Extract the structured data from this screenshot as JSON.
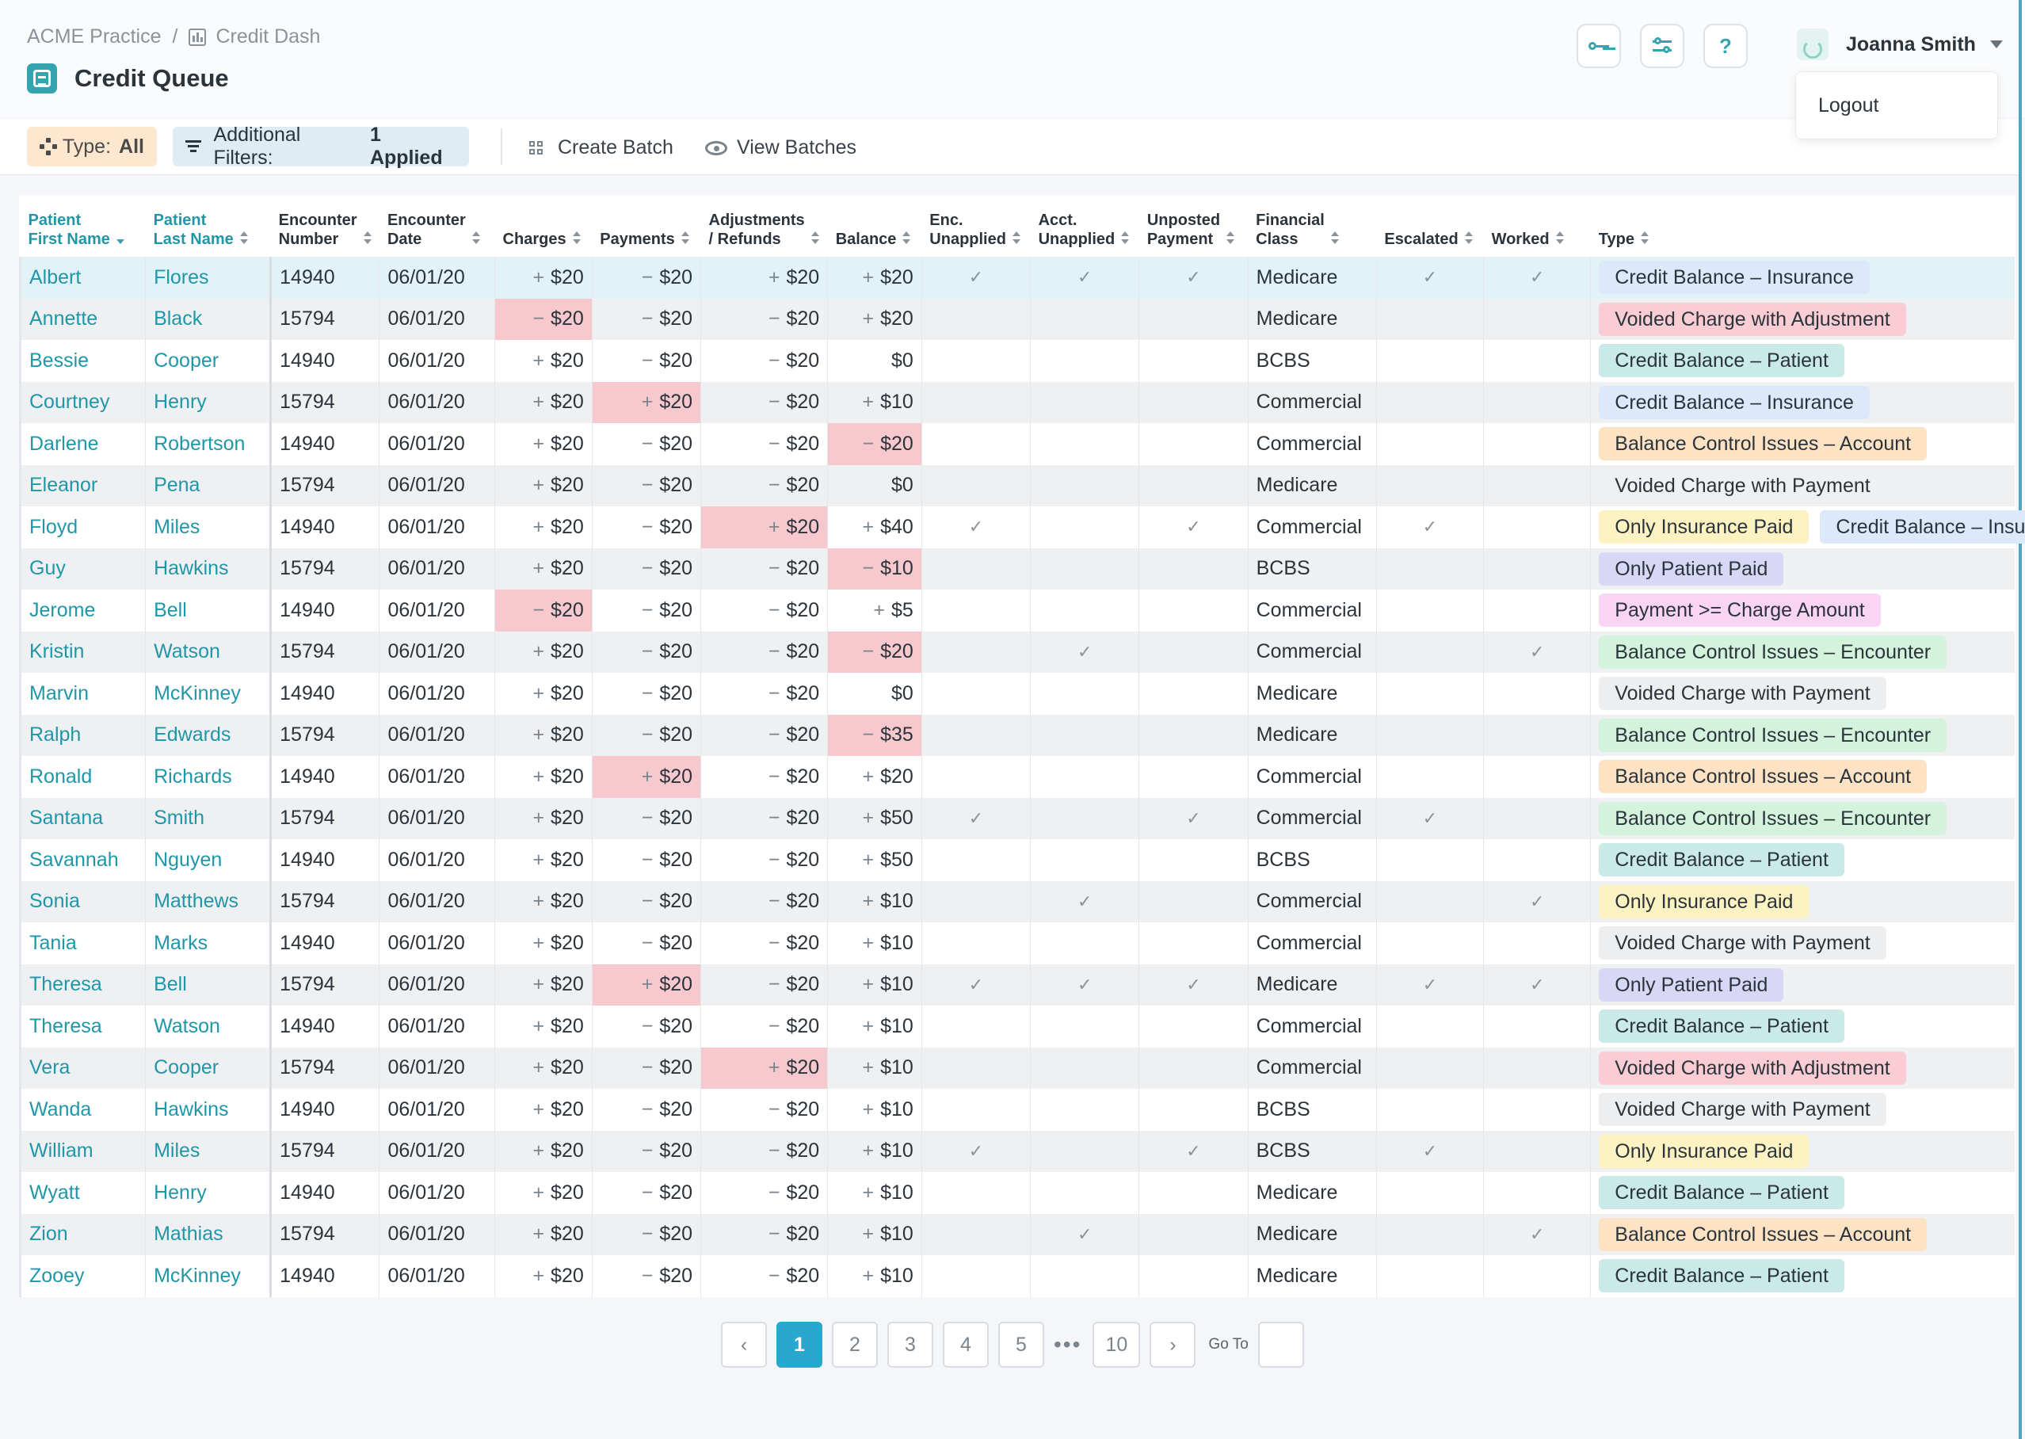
{
  "breadcrumb": {
    "root": "ACME Practice",
    "sep": "/",
    "current": "Credit Dash"
  },
  "page_title": "Credit Queue",
  "top_buttons": {
    "help": "?"
  },
  "user": {
    "name": "Joanna Smith",
    "menu_item": "Logout"
  },
  "toolbar": {
    "type_label": "Type:",
    "type_value": "All",
    "filters_label": "Additional Filters:",
    "filters_value": "1 Applied",
    "create_batch": "Create Batch",
    "view_batches": "View Batches"
  },
  "columns": [
    [
      "Patient",
      "First Name"
    ],
    [
      "Patient",
      "Last Name"
    ],
    [
      "Encounter",
      "Number"
    ],
    [
      "Encounter",
      "Date"
    ],
    [
      "Charges"
    ],
    [
      "Payments"
    ],
    [
      "Adjustments",
      "/ Refunds"
    ],
    [
      "Balance"
    ],
    [
      "Enc.",
      "Unapplied"
    ],
    [
      "Acct.",
      "Unapplied"
    ],
    [
      "Unposted",
      "Payment"
    ],
    [
      "Financial",
      "Class"
    ],
    [
      "Escalated"
    ],
    [
      "Worked"
    ],
    [
      "Type"
    ]
  ],
  "rows": [
    {
      "first": "Albert",
      "last": "Flores",
      "enc": "14940",
      "date": "06/01/20",
      "ch": [
        "+",
        "$20"
      ],
      "pay": [
        "−",
        "$20"
      ],
      "adj": [
        "+",
        "$20"
      ],
      "bal": [
        "+",
        "$20"
      ],
      "encU": true,
      "acctU": true,
      "unp": true,
      "fc": "Medicare",
      "esc": true,
      "wrk": true,
      "types": [
        [
          "Credit Balance – Insurance",
          "ins"
        ]
      ],
      "hl": [],
      "sel": true
    },
    {
      "first": "Annette",
      "last": "Black",
      "enc": "15794",
      "date": "06/01/20",
      "ch": [
        "−",
        "$20"
      ],
      "pay": [
        "−",
        "$20"
      ],
      "adj": [
        "−",
        "$20"
      ],
      "bal": [
        "+",
        "$20"
      ],
      "encU": false,
      "acctU": false,
      "unp": false,
      "fc": "Medicare",
      "esc": false,
      "wrk": false,
      "types": [
        [
          "Voided Charge with Adjustment",
          "void-adj"
        ]
      ],
      "hl": [
        "ch"
      ]
    },
    {
      "first": "Bessie",
      "last": "Cooper",
      "enc": "14940",
      "date": "06/01/20",
      "ch": [
        "+",
        "$20"
      ],
      "pay": [
        "−",
        "$20"
      ],
      "adj": [
        "−",
        "$20"
      ],
      "bal": [
        "",
        "$0"
      ],
      "encU": false,
      "acctU": false,
      "unp": false,
      "fc": "BCBS",
      "esc": false,
      "wrk": false,
      "types": [
        [
          "Credit Balance – Patient",
          "pat"
        ]
      ],
      "hl": []
    },
    {
      "first": "Courtney",
      "last": "Henry",
      "enc": "15794",
      "date": "06/01/20",
      "ch": [
        "+",
        "$20"
      ],
      "pay": [
        "+",
        "$20"
      ],
      "adj": [
        "−",
        "$20"
      ],
      "bal": [
        "+",
        "$10"
      ],
      "encU": false,
      "acctU": false,
      "unp": false,
      "fc": "Commercial",
      "esc": false,
      "wrk": false,
      "types": [
        [
          "Credit Balance – Insurance",
          "ins"
        ]
      ],
      "hl": [
        "pay"
      ]
    },
    {
      "first": "Darlene",
      "last": "Robertson",
      "enc": "14940",
      "date": "06/01/20",
      "ch": [
        "+",
        "$20"
      ],
      "pay": [
        "−",
        "$20"
      ],
      "adj": [
        "−",
        "$20"
      ],
      "bal": [
        "−",
        "$20"
      ],
      "encU": false,
      "acctU": false,
      "unp": false,
      "fc": "Commercial",
      "esc": false,
      "wrk": false,
      "types": [
        [
          "Balance Control Issues – Account",
          "acct"
        ]
      ],
      "hl": [
        "bal"
      ]
    },
    {
      "first": "Eleanor",
      "last": "Pena",
      "enc": "15794",
      "date": "06/01/20",
      "ch": [
        "+",
        "$20"
      ],
      "pay": [
        "−",
        "$20"
      ],
      "adj": [
        "−",
        "$20"
      ],
      "bal": [
        "",
        "$0"
      ],
      "encU": false,
      "acctU": false,
      "unp": false,
      "fc": "Medicare",
      "esc": false,
      "wrk": false,
      "types": [
        [
          "Voided Charge with Payment",
          "plain"
        ]
      ],
      "hl": []
    },
    {
      "first": "Floyd",
      "last": "Miles",
      "enc": "14940",
      "date": "06/01/20",
      "ch": [
        "+",
        "$20"
      ],
      "pay": [
        "−",
        "$20"
      ],
      "adj": [
        "+",
        "$20"
      ],
      "bal": [
        "+",
        "$40"
      ],
      "encU": true,
      "acctU": false,
      "unp": true,
      "fc": "Commercial",
      "esc": true,
      "wrk": false,
      "types": [
        [
          "Only Insurance Paid",
          "ins-paid"
        ],
        [
          "Credit Balance – Insurance",
          "ins"
        ]
      ],
      "hl": [
        "adj"
      ]
    },
    {
      "first": "Guy",
      "last": "Hawkins",
      "enc": "15794",
      "date": "06/01/20",
      "ch": [
        "+",
        "$20"
      ],
      "pay": [
        "−",
        "$20"
      ],
      "adj": [
        "−",
        "$20"
      ],
      "bal": [
        "−",
        "$10"
      ],
      "encU": false,
      "acctU": false,
      "unp": false,
      "fc": "BCBS",
      "esc": false,
      "wrk": false,
      "types": [
        [
          "Only Patient Paid",
          "pat-paid"
        ]
      ],
      "hl": [
        "bal"
      ]
    },
    {
      "first": "Jerome",
      "last": "Bell",
      "enc": "14940",
      "date": "06/01/20",
      "ch": [
        "−",
        "$20"
      ],
      "pay": [
        "−",
        "$20"
      ],
      "adj": [
        "−",
        "$20"
      ],
      "bal": [
        "+",
        "$5"
      ],
      "encU": false,
      "acctU": false,
      "unp": false,
      "fc": "Commercial",
      "esc": false,
      "wrk": false,
      "types": [
        [
          "Payment >= Charge Amount",
          "pay-gt"
        ]
      ],
      "hl": [
        "ch"
      ]
    },
    {
      "first": "Kristin",
      "last": "Watson",
      "enc": "15794",
      "date": "06/01/20",
      "ch": [
        "+",
        "$20"
      ],
      "pay": [
        "−",
        "$20"
      ],
      "adj": [
        "−",
        "$20"
      ],
      "bal": [
        "−",
        "$20"
      ],
      "encU": false,
      "acctU": true,
      "unp": false,
      "fc": "Commercial",
      "esc": false,
      "wrk": true,
      "types": [
        [
          "Balance Control Issues – Encounter",
          "enc"
        ]
      ],
      "hl": [
        "bal"
      ]
    },
    {
      "first": "Marvin",
      "last": "McKinney",
      "enc": "14940",
      "date": "06/01/20",
      "ch": [
        "+",
        "$20"
      ],
      "pay": [
        "−",
        "$20"
      ],
      "adj": [
        "−",
        "$20"
      ],
      "bal": [
        "",
        "$0"
      ],
      "encU": false,
      "acctU": false,
      "unp": false,
      "fc": "Medicare",
      "esc": false,
      "wrk": false,
      "types": [
        [
          "Voided Charge with Payment",
          "void-pay"
        ]
      ],
      "hl": []
    },
    {
      "first": "Ralph",
      "last": "Edwards",
      "enc": "15794",
      "date": "06/01/20",
      "ch": [
        "+",
        "$20"
      ],
      "pay": [
        "−",
        "$20"
      ],
      "adj": [
        "−",
        "$20"
      ],
      "bal": [
        "−",
        "$35"
      ],
      "encU": false,
      "acctU": false,
      "unp": false,
      "fc": "Medicare",
      "esc": false,
      "wrk": false,
      "types": [
        [
          "Balance Control Issues – Encounter",
          "enc"
        ]
      ],
      "hl": [
        "bal"
      ]
    },
    {
      "first": "Ronald",
      "last": "Richards",
      "enc": "14940",
      "date": "06/01/20",
      "ch": [
        "+",
        "$20"
      ],
      "pay": [
        "+",
        "$20"
      ],
      "adj": [
        "−",
        "$20"
      ],
      "bal": [
        "+",
        "$20"
      ],
      "encU": false,
      "acctU": false,
      "unp": false,
      "fc": "Commercial",
      "esc": false,
      "wrk": false,
      "types": [
        [
          "Balance Control Issues – Account",
          "acct"
        ]
      ],
      "hl": [
        "pay"
      ]
    },
    {
      "first": "Santana",
      "last": "Smith",
      "enc": "15794",
      "date": "06/01/20",
      "ch": [
        "+",
        "$20"
      ],
      "pay": [
        "−",
        "$20"
      ],
      "adj": [
        "−",
        "$20"
      ],
      "bal": [
        "+",
        "$50"
      ],
      "encU": true,
      "acctU": false,
      "unp": true,
      "fc": "Commercial",
      "esc": true,
      "wrk": false,
      "types": [
        [
          "Balance Control Issues – Encounter",
          "enc"
        ]
      ],
      "hl": []
    },
    {
      "first": "Savannah",
      "last": "Nguyen",
      "enc": "14940",
      "date": "06/01/20",
      "ch": [
        "+",
        "$20"
      ],
      "pay": [
        "−",
        "$20"
      ],
      "adj": [
        "−",
        "$20"
      ],
      "bal": [
        "+",
        "$50"
      ],
      "encU": false,
      "acctU": false,
      "unp": false,
      "fc": "BCBS",
      "esc": false,
      "wrk": false,
      "types": [
        [
          "Credit Balance – Patient",
          "pat"
        ]
      ],
      "hl": []
    },
    {
      "first": "Sonia",
      "last": "Matthews",
      "enc": "15794",
      "date": "06/01/20",
      "ch": [
        "+",
        "$20"
      ],
      "pay": [
        "−",
        "$20"
      ],
      "adj": [
        "−",
        "$20"
      ],
      "bal": [
        "+",
        "$10"
      ],
      "encU": false,
      "acctU": true,
      "unp": false,
      "fc": "Commercial",
      "esc": false,
      "wrk": true,
      "types": [
        [
          "Only Insurance Paid",
          "ins-paid"
        ]
      ],
      "hl": []
    },
    {
      "first": "Tania",
      "last": "Marks",
      "enc": "14940",
      "date": "06/01/20",
      "ch": [
        "+",
        "$20"
      ],
      "pay": [
        "−",
        "$20"
      ],
      "adj": [
        "−",
        "$20"
      ],
      "bal": [
        "+",
        "$10"
      ],
      "encU": false,
      "acctU": false,
      "unp": false,
      "fc": "Commercial",
      "esc": false,
      "wrk": false,
      "types": [
        [
          "Voided Charge with Payment",
          "void-pay"
        ]
      ],
      "hl": []
    },
    {
      "first": "Theresa",
      "last": "Bell",
      "enc": "15794",
      "date": "06/01/20",
      "ch": [
        "+",
        "$20"
      ],
      "pay": [
        "+",
        "$20"
      ],
      "adj": [
        "−",
        "$20"
      ],
      "bal": [
        "+",
        "$10"
      ],
      "encU": true,
      "acctU": true,
      "unp": true,
      "fc": "Medicare",
      "esc": true,
      "wrk": true,
      "types": [
        [
          "Only Patient Paid",
          "pat-paid"
        ]
      ],
      "hl": [
        "pay"
      ]
    },
    {
      "first": "Theresa",
      "last": "Watson",
      "enc": "14940",
      "date": "06/01/20",
      "ch": [
        "+",
        "$20"
      ],
      "pay": [
        "−",
        "$20"
      ],
      "adj": [
        "−",
        "$20"
      ],
      "bal": [
        "+",
        "$10"
      ],
      "encU": false,
      "acctU": false,
      "unp": false,
      "fc": "Commercial",
      "esc": false,
      "wrk": false,
      "types": [
        [
          "Credit Balance – Patient",
          "pat"
        ]
      ],
      "hl": []
    },
    {
      "first": "Vera",
      "last": "Cooper",
      "enc": "15794",
      "date": "06/01/20",
      "ch": [
        "+",
        "$20"
      ],
      "pay": [
        "−",
        "$20"
      ],
      "adj": [
        "+",
        "$20"
      ],
      "bal": [
        "+",
        "$10"
      ],
      "encU": false,
      "acctU": false,
      "unp": false,
      "fc": "Commercial",
      "esc": false,
      "wrk": false,
      "types": [
        [
          "Voided Charge with Adjustment",
          "void-adj"
        ]
      ],
      "hl": [
        "adj"
      ]
    },
    {
      "first": "Wanda",
      "last": "Hawkins",
      "enc": "14940",
      "date": "06/01/20",
      "ch": [
        "+",
        "$20"
      ],
      "pay": [
        "−",
        "$20"
      ],
      "adj": [
        "−",
        "$20"
      ],
      "bal": [
        "+",
        "$10"
      ],
      "encU": false,
      "acctU": false,
      "unp": false,
      "fc": "BCBS",
      "esc": false,
      "wrk": false,
      "types": [
        [
          "Voided Charge with Payment",
          "void-pay"
        ]
      ],
      "hl": []
    },
    {
      "first": "William",
      "last": "Miles",
      "enc": "15794",
      "date": "06/01/20",
      "ch": [
        "+",
        "$20"
      ],
      "pay": [
        "−",
        "$20"
      ],
      "adj": [
        "−",
        "$20"
      ],
      "bal": [
        "+",
        "$10"
      ],
      "encU": true,
      "acctU": false,
      "unp": true,
      "fc": "BCBS",
      "esc": true,
      "wrk": false,
      "types": [
        [
          "Only Insurance Paid",
          "ins-paid"
        ]
      ],
      "hl": []
    },
    {
      "first": "Wyatt",
      "last": "Henry",
      "enc": "14940",
      "date": "06/01/20",
      "ch": [
        "+",
        "$20"
      ],
      "pay": [
        "−",
        "$20"
      ],
      "adj": [
        "−",
        "$20"
      ],
      "bal": [
        "+",
        "$10"
      ],
      "encU": false,
      "acctU": false,
      "unp": false,
      "fc": "Medicare",
      "esc": false,
      "wrk": false,
      "types": [
        [
          "Credit Balance – Patient",
          "pat"
        ]
      ],
      "hl": []
    },
    {
      "first": "Zion",
      "last": "Mathias",
      "enc": "15794",
      "date": "06/01/20",
      "ch": [
        "+",
        "$20"
      ],
      "pay": [
        "−",
        "$20"
      ],
      "adj": [
        "−",
        "$20"
      ],
      "bal": [
        "+",
        "$10"
      ],
      "encU": false,
      "acctU": true,
      "unp": false,
      "fc": "Medicare",
      "esc": false,
      "wrk": true,
      "types": [
        [
          "Balance Control Issues – Account",
          "acct"
        ]
      ],
      "hl": []
    },
    {
      "first": "Zooey",
      "last": "McKinney",
      "enc": "14940",
      "date": "06/01/20",
      "ch": [
        "+",
        "$20"
      ],
      "pay": [
        "−",
        "$20"
      ],
      "adj": [
        "−",
        "$20"
      ],
      "bal": [
        "+",
        "$10"
      ],
      "encU": false,
      "acctU": false,
      "unp": false,
      "fc": "Medicare",
      "esc": false,
      "wrk": false,
      "types": [
        [
          "Credit Balance – Patient",
          "pat"
        ]
      ],
      "hl": []
    }
  ],
  "check_glyph": "✓",
  "pagination": {
    "pages": [
      "1",
      "2",
      "3",
      "4",
      "5"
    ],
    "ellipsis": "•••",
    "last": "10",
    "active": "1",
    "goto_label": "Go To"
  }
}
